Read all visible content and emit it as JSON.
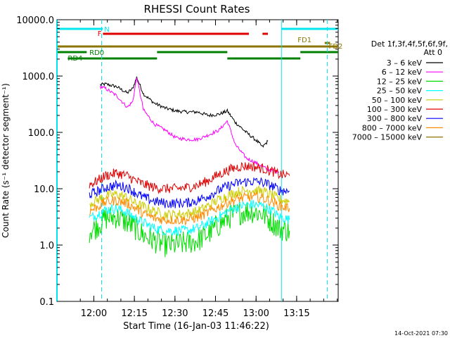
{
  "chart_data": {
    "type": "line",
    "title": "RHESSI Count Rates",
    "xlabel": "Start Time (16-Jan-03 11:46:22)",
    "ylabel": "Count Rate (s⁻¹ detector segment⁻¹)",
    "y_scale": "log",
    "ylim": [
      0.1,
      10000
    ],
    "xlim_minutes_since_start": [
      0,
      104
    ],
    "x_tick_labels": [
      "12:00",
      "12:15",
      "12:30",
      "12:45",
      "13:00",
      "13:15"
    ],
    "x_tick_minutes": [
      13.633,
      28.633,
      43.633,
      58.633,
      73.633,
      88.633
    ],
    "y_tick_labels": [
      "0.1",
      "1.0",
      "10.0",
      "100.0",
      "1000.0",
      "10000.0"
    ],
    "y_tick_values": [
      0.1,
      1,
      10,
      100,
      1000,
      10000
    ],
    "timestamp": "14-Oct-2021 07:30",
    "legend": {
      "header_line1": "Det 1f,3f,4f,5f,6f,9f,",
      "header_line2": "Att 0",
      "placement": "right"
    },
    "flags": [
      {
        "label": "N",
        "color": "#00e5ee"
      },
      {
        "label": "F",
        "color": "#e00000"
      },
      {
        "label": "FD1",
        "color": "#8b7500"
      },
      {
        "label": "FD2",
        "color": "#8b7500"
      },
      {
        "label": "RD0",
        "color": "#008000"
      },
      {
        "label": "RD4",
        "color": "#008000"
      }
    ],
    "series": [
      {
        "name": "3 – 6 keV",
        "color": "#000000",
        "x": [
          16,
          18,
          22,
          26,
          28,
          29.5,
          32,
          36,
          40,
          44,
          48,
          52,
          56,
          60,
          63,
          66,
          70,
          74,
          76,
          78
        ],
        "y": [
          700,
          720,
          650,
          500,
          600,
          950,
          480,
          330,
          270,
          240,
          230,
          230,
          200,
          210,
          240,
          150,
          100,
          70,
          55,
          70
        ]
      },
      {
        "name": "6 – 12 keV",
        "color": "#ff00ff",
        "x": [
          16,
          18,
          22,
          26,
          28,
          29.5,
          32,
          36,
          40,
          44,
          48,
          52,
          56,
          60,
          63,
          66,
          70,
          74,
          78,
          82
        ],
        "y": [
          650,
          600,
          450,
          280,
          350,
          950,
          250,
          140,
          110,
          80,
          75,
          75,
          90,
          110,
          160,
          60,
          35,
          28,
          22,
          20
        ]
      },
      {
        "name": "12 – 25 keV",
        "color": "#00dd00",
        "x": [
          12,
          14,
          18,
          22,
          26,
          29,
          32,
          36,
          40,
          44,
          48,
          52,
          56,
          60,
          64,
          68,
          72,
          76,
          80,
          82,
          86
        ],
        "y": [
          1.8,
          2.0,
          3.0,
          3.2,
          2.5,
          2.0,
          1.5,
          1.2,
          1.0,
          1.0,
          1.1,
          1.2,
          1.6,
          2.3,
          3.2,
          3.8,
          4.0,
          3.6,
          2.5,
          2.0,
          1.8
        ]
      },
      {
        "name": "25 – 50 keV",
        "color": "#00ffff",
        "x": [
          12,
          14,
          18,
          22,
          26,
          29,
          32,
          36,
          40,
          44,
          48,
          52,
          56,
          60,
          64,
          68,
          72,
          76,
          80,
          82,
          86
        ],
        "y": [
          3.0,
          3.3,
          4.2,
          4.5,
          3.8,
          3.0,
          2.5,
          2.0,
          1.8,
          1.8,
          1.8,
          2.0,
          2.5,
          3.2,
          4.2,
          5.0,
          5.3,
          5.0,
          4.0,
          3.2,
          2.8
        ]
      },
      {
        "name": "50 – 100 keV",
        "color": "#cccc00",
        "x": [
          12,
          14,
          18,
          22,
          26,
          29,
          32,
          36,
          40,
          44,
          48,
          52,
          56,
          60,
          64,
          68,
          72,
          76,
          80,
          82,
          86
        ],
        "y": [
          5.5,
          6.0,
          7.5,
          8.0,
          7.0,
          5.5,
          4.8,
          4.0,
          3.5,
          3.5,
          3.6,
          4.0,
          5.0,
          6.5,
          8.0,
          9.0,
          9.5,
          9.0,
          7.5,
          6.5,
          6.0
        ]
      },
      {
        "name": "100 – 300 keV",
        "color": "#e00000",
        "x": [
          12,
          14,
          18,
          22,
          26,
          29,
          32,
          36,
          40,
          44,
          48,
          52,
          56,
          60,
          64,
          68,
          72,
          76,
          80,
          82,
          86
        ],
        "y": [
          12,
          13,
          17,
          19,
          17,
          14,
          12,
          10.5,
          10,
          10,
          10.5,
          11.5,
          14,
          18,
          22,
          25,
          25,
          23,
          20,
          18,
          17
        ]
      },
      {
        "name": "300 – 800 keV",
        "color": "#0000ff",
        "x": [
          12,
          14,
          18,
          22,
          26,
          29,
          32,
          36,
          40,
          44,
          48,
          52,
          56,
          60,
          64,
          68,
          72,
          76,
          80,
          82,
          86
        ],
        "y": [
          8.0,
          8.5,
          10.5,
          11.5,
          10.5,
          8.5,
          7.0,
          6.0,
          5.5,
          5.5,
          5.6,
          6.2,
          7.5,
          9.5,
          11.5,
          13,
          13.5,
          13,
          11,
          9.5,
          9.0
        ]
      },
      {
        "name": "800 – 7000 keV",
        "color": "#ff8c00",
        "x": [
          12,
          14,
          18,
          22,
          26,
          29,
          32,
          36,
          40,
          44,
          48,
          52,
          56,
          60,
          64,
          68,
          72,
          76,
          80,
          82,
          86
        ],
        "y": [
          4.0,
          4.5,
          5.8,
          6.2,
          5.5,
          4.5,
          3.6,
          3.0,
          2.8,
          2.8,
          2.8,
          3.1,
          3.8,
          4.8,
          6.0,
          6.8,
          7.2,
          6.8,
          5.8,
          5.0,
          4.5
        ]
      },
      {
        "name": "7000 – 15000 keV",
        "color": "#8b7500",
        "x": [],
        "y": []
      }
    ]
  }
}
